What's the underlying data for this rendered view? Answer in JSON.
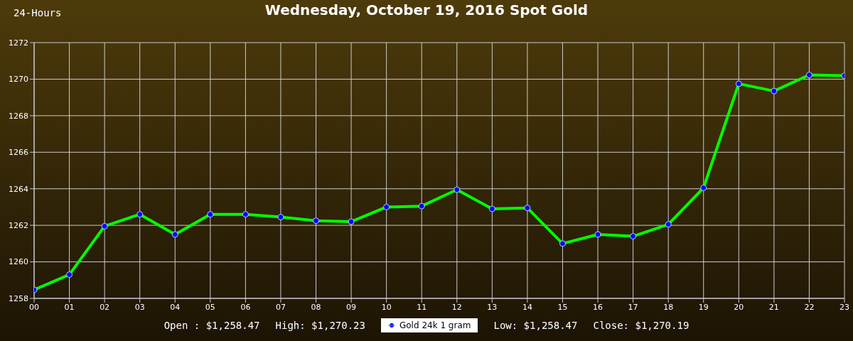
{
  "chart_data": {
    "type": "line",
    "title": "Wednesday, October 19, 2016 Spot Gold",
    "annotations": [
      "24-Hours",
      "Open : $1,258.47",
      "High: $1,270.23",
      "Low: $1,258.47",
      "Close: $1,270.19"
    ],
    "categories": [
      "00",
      "01",
      "02",
      "03",
      "04",
      "05",
      "06",
      "07",
      "08",
      "09",
      "10",
      "11",
      "12",
      "13",
      "14",
      "15",
      "16",
      "17",
      "18",
      "19",
      "20",
      "21",
      "22",
      "23"
    ],
    "series": [
      {
        "name": "Gold 24k 1 gram",
        "color": "#00ff00",
        "values": [
          1258.47,
          1259.3,
          1261.95,
          1262.6,
          1261.5,
          1262.6,
          1262.6,
          1262.45,
          1262.25,
          1262.2,
          1263.0,
          1263.05,
          1263.95,
          1262.9,
          1262.95,
          1261.0,
          1261.5,
          1261.4,
          1262.05,
          1264.05,
          1269.75,
          1269.35,
          1270.23,
          1270.19
        ]
      }
    ],
    "ylim": [
      1258,
      1272
    ],
    "yticks": [
      1258,
      1260,
      1262,
      1264,
      1266,
      1268,
      1270,
      1272
    ],
    "grid": true,
    "legend": "bottom",
    "marker": "circle",
    "line_style": "solid"
  }
}
